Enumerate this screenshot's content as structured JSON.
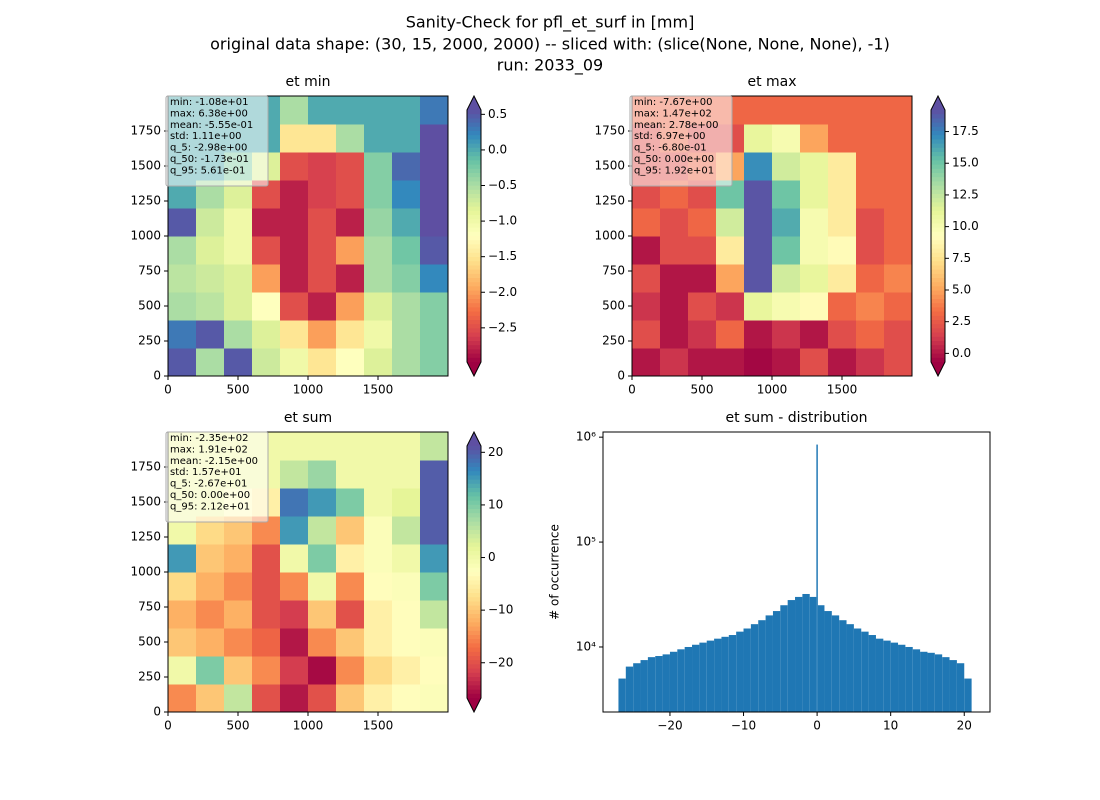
{
  "figure_title": [
    "Sanity-Check for pfl_et_surf in [mm]",
    "original data shape: (30, 15, 2000, 2000) -- sliced with: (slice(None, None, None), -1)",
    "run: 2033_09"
  ],
  "chart_data": [
    {
      "type": "heatmap",
      "title": "et min",
      "colormap": "Spectral",
      "stats": [
        "min: -1.08e+01",
        "max: 6.38e+00",
        "mean: -5.55e-01",
        "std: 1.11e+00",
        "q_5: -2.98e+00",
        "q_50: -1.73e-01",
        "q_95: 5.61e-01"
      ],
      "xlim": [
        0,
        2000
      ],
      "ylim": [
        0,
        2000
      ],
      "xticks": [
        0,
        500,
        1000,
        1500
      ],
      "yticks": [
        0,
        250,
        500,
        750,
        1000,
        1250,
        1500,
        1750
      ],
      "clim": [
        -2.98,
        0.561
      ],
      "colorbar_ticks": [
        {
          "value": 0.5,
          "label": "0.5"
        },
        {
          "value": 0,
          "label": "0.0"
        },
        {
          "value": -0.5,
          "label": "−0.5"
        },
        {
          "value": -1,
          "label": "−1.0"
        },
        {
          "value": -1.5,
          "label": "−1.5"
        },
        {
          "value": -2,
          "label": "−2.0"
        },
        {
          "value": -2.5,
          "label": "−2.5"
        }
      ],
      "z": [
        [
          0.5,
          -0.5,
          0.5,
          -0.7,
          -1,
          -1.5,
          -1.2,
          -0.8,
          -0.5,
          -0.3
        ],
        [
          0.3,
          0.5,
          -0.5,
          -0.8,
          -1.5,
          -2,
          -1.5,
          -1,
          -0.5,
          -0.3
        ],
        [
          -0.5,
          -0.6,
          -0.8,
          -1.2,
          -2.5,
          -2.8,
          -2,
          -0.8,
          -0.5,
          -0.3
        ],
        [
          -0.6,
          -0.7,
          -0.8,
          -2,
          -2.8,
          -2.5,
          -2.8,
          -0.5,
          -0.3,
          0.2
        ],
        [
          -0.5,
          -0.8,
          -1,
          -2.5,
          -2.8,
          -2.5,
          -2,
          -0.5,
          -0.2,
          0.5
        ],
        [
          0.5,
          -0.7,
          -1,
          -2.8,
          -2.8,
          -2.5,
          -2.8,
          -0.4,
          0,
          0.6
        ],
        [
          0,
          -0.5,
          -0.8,
          -2.5,
          -2.8,
          -2.6,
          -2.5,
          -0.3,
          0.2,
          0.6
        ],
        [
          0,
          0,
          -0.3,
          -0.8,
          -2.5,
          -2.6,
          -2.5,
          -0.3,
          0.4,
          0.6
        ],
        [
          0,
          0,
          0,
          0,
          -1.5,
          -1.5,
          -0.5,
          0,
          0,
          0.6
        ],
        [
          0,
          0,
          0,
          0,
          -0.5,
          0,
          0,
          0,
          0,
          0.3
        ]
      ]
    },
    {
      "type": "heatmap",
      "title": "et max",
      "colormap": "Spectral",
      "stats": [
        "min: -7.67e+00",
        "max: 1.47e+02",
        "mean: 2.78e+00",
        "std: 6.97e+00",
        "q_5: -6.80e-01",
        "q_50: 0.00e+00",
        "q_95: 1.92e+01"
      ],
      "xlim": [
        0,
        2000
      ],
      "ylim": [
        0,
        2000
      ],
      "xticks": [
        0,
        500,
        1000,
        1500
      ],
      "yticks": [
        0,
        250,
        500,
        750,
        1000,
        1250,
        1500,
        1750
      ],
      "clim": [
        -0.68,
        19.2
      ],
      "colorbar_ticks": [
        {
          "value": 0,
          "label": "0.0"
        },
        2.5,
        {
          "value": 5,
          "label": "5.0"
        },
        7.5,
        {
          "value": 10,
          "label": "10.0"
        },
        12.5,
        {
          "value": 15,
          "label": "15.0"
        },
        17.5
      ],
      "z": [
        [
          0,
          1,
          0,
          0,
          -0.5,
          0,
          2,
          0,
          1,
          2
        ],
        [
          2,
          0,
          1,
          3,
          0,
          1,
          0,
          2,
          3,
          2
        ],
        [
          1,
          0,
          2,
          1,
          11,
          10,
          9,
          3,
          4,
          3
        ],
        [
          2,
          0,
          0,
          5,
          19,
          12,
          11,
          8,
          3,
          4
        ],
        [
          0,
          2,
          2,
          8,
          19,
          15,
          10,
          9,
          2,
          3
        ],
        [
          3,
          2,
          3,
          12,
          19,
          16,
          10,
          8,
          2,
          3
        ],
        [
          2,
          3,
          2,
          15,
          19,
          15,
          11,
          8,
          3,
          3
        ],
        [
          2,
          2,
          3,
          5,
          17,
          12,
          11,
          8,
          3,
          3
        ],
        [
          2,
          3,
          2,
          2,
          11,
          10,
          5,
          3,
          3,
          3
        ],
        [
          3,
          3,
          3,
          3,
          3,
          3,
          3,
          3,
          3,
          3
        ]
      ]
    },
    {
      "type": "heatmap",
      "title": "et sum",
      "colormap": "Spectral",
      "stats": [
        "min: -2.35e+02",
        "max: 1.91e+02",
        "mean: -2.15e+00",
        "std: 1.57e+01",
        "q_5: -2.67e+01",
        "q_50: 0.00e+00",
        "q_95: 2.12e+01"
      ],
      "xlim": [
        0,
        2000
      ],
      "ylim": [
        0,
        2000
      ],
      "xticks": [
        0,
        500,
        1000,
        1500
      ],
      "yticks": [
        0,
        250,
        500,
        750,
        1000,
        1250,
        1500,
        1750
      ],
      "clim": [
        -26.7,
        21.2
      ],
      "colorbar_ticks": [
        20,
        10,
        0,
        {
          "value": -10,
          "label": "−10"
        },
        {
          "value": -20,
          "label": "−20"
        }
      ],
      "z": [
        [
          -15,
          -10,
          5,
          -20,
          -25,
          -20,
          -10,
          -5,
          -3,
          -2
        ],
        [
          0,
          10,
          -10,
          -15,
          -22,
          -26,
          -15,
          -8,
          -5,
          -3
        ],
        [
          -10,
          -12,
          -15,
          -18,
          -25,
          -15,
          -10,
          -5,
          -3,
          -2
        ],
        [
          -12,
          -15,
          -12,
          -20,
          -22,
          -10,
          -20,
          -5,
          -3,
          5
        ],
        [
          -8,
          -12,
          -15,
          -20,
          -15,
          0,
          -15,
          -3,
          -2,
          10
        ],
        [
          15,
          -10,
          -12,
          -20,
          0,
          10,
          -5,
          -2,
          0,
          15
        ],
        [
          0,
          -8,
          -10,
          -15,
          15,
          5,
          -10,
          -2,
          5,
          20
        ],
        [
          0,
          0,
          -3,
          -5,
          18,
          15,
          10,
          0,
          2,
          20
        ],
        [
          0,
          0,
          0,
          0,
          5,
          8,
          0,
          0,
          0,
          20
        ],
        [
          0,
          0,
          0,
          0,
          0,
          0,
          0,
          0,
          0,
          5
        ]
      ]
    },
    {
      "type": "histogram",
      "title": "et sum - distribution",
      "ylabel": "# of occurrence",
      "color": "#1f77b4",
      "log_y": true,
      "bins": [
        -27,
        -26,
        -25,
        -24,
        -23,
        -22,
        -21,
        -20,
        -19,
        -18,
        -17,
        -16,
        -15,
        -14,
        -13,
        -12,
        -11,
        -10,
        -9,
        -8,
        -7,
        -6,
        -5,
        -4,
        -3,
        -2,
        -1,
        -0.1,
        0.1,
        1,
        2,
        3,
        4,
        5,
        6,
        7,
        8,
        9,
        10,
        11,
        12,
        13,
        14,
        15,
        16,
        17,
        18,
        19,
        20,
        21
      ],
      "counts": [
        5000,
        6500,
        7000,
        7500,
        8000,
        8200,
        8500,
        9000,
        9500,
        10000,
        10500,
        11000,
        11500,
        12000,
        12500,
        13000,
        14000,
        15000,
        16500,
        18000,
        20000,
        22000,
        25000,
        28000,
        30000,
        32000,
        30000,
        850000,
        25000,
        22000,
        20000,
        18000,
        16500,
        15000,
        14000,
        13000,
        12000,
        11500,
        11000,
        10500,
        10000,
        9500,
        9000,
        8800,
        8500,
        8000,
        7500,
        7000,
        5000
      ],
      "xlim": [
        -29.1,
        23.5
      ],
      "ylim": [
        2400,
        1120000
      ],
      "xticks": [
        {
          "value": -20,
          "label": "−20"
        },
        {
          "value": -10,
          "label": "−10"
        },
        0,
        10,
        20
      ],
      "yticks": [
        {
          "value": 10000,
          "label": "10⁴"
        },
        {
          "value": 100000,
          "label": "10⁵"
        },
        {
          "value": 1000000,
          "label": "10⁶"
        }
      ]
    }
  ]
}
